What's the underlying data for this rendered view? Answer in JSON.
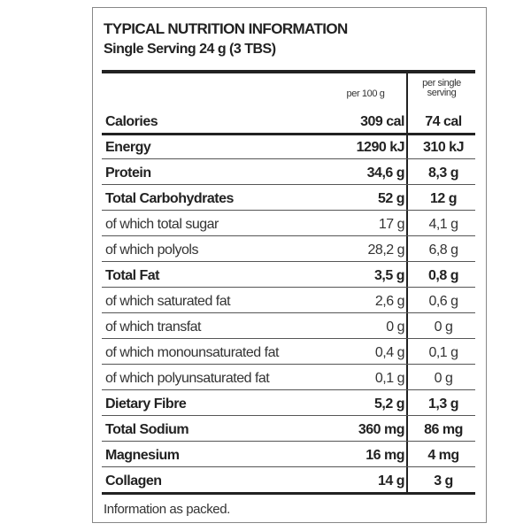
{
  "header": {
    "title": "TYPICAL NUTRITION INFORMATION",
    "subtitle": "Single Serving  24 g (3 TBS)"
  },
  "table": {
    "columns": [
      "per 100 g",
      "per single serving"
    ],
    "rows": [
      [
        "Calories",
        "309 cal",
        "74 cal"
      ],
      [
        "Energy",
        "1290 kJ",
        "310 kJ"
      ],
      [
        "Protein",
        "34,6 g",
        "8,3 g"
      ],
      [
        "Total Carbohydrates",
        "52 g",
        "12 g"
      ],
      [
        "of which total sugar",
        "17 g",
        "4,1 g"
      ],
      [
        "of which polyols",
        "28,2 g",
        "6,8 g"
      ],
      [
        "Total Fat",
        "3,5 g",
        "0,8 g"
      ],
      [
        "of which saturated fat",
        "2,6 g",
        "0,6 g"
      ],
      [
        "of which transfat",
        "0 g",
        "0 g"
      ],
      [
        "of which monounsaturated fat",
        "0,4 g",
        "0,1 g"
      ],
      [
        "of which polyunsaturated fat",
        "0,1 g",
        "0 g"
      ],
      [
        "Dietary Fibre",
        "5,2 g",
        "1,3 g"
      ],
      [
        "Total Sodium",
        "360 mg",
        "86 mg"
      ],
      [
        "Magnesium",
        "16 mg",
        "4 mg"
      ],
      [
        "Collagen",
        "14 g",
        "3 g"
      ]
    ]
  },
  "footer": "Information as packed."
}
